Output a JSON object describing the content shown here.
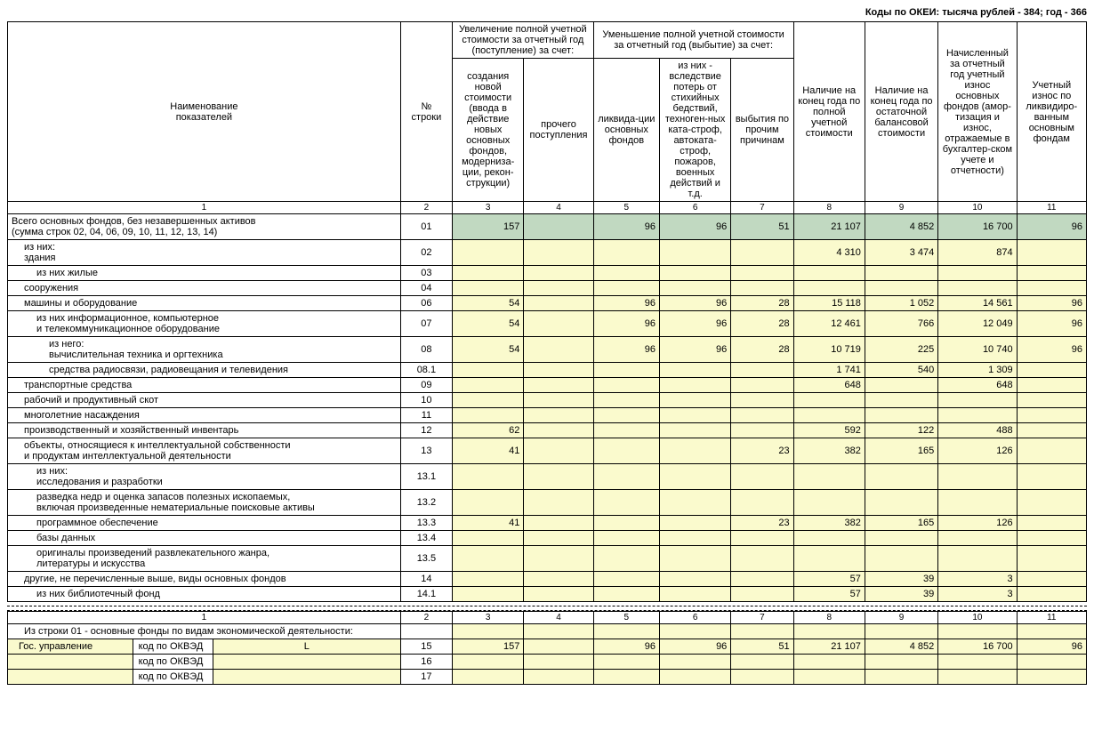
{
  "header_text": "Коды по ОКЕИ: тысяча рублей - 384; год - 366",
  "columns": {
    "name_label": "Наименование\nпоказателей",
    "row_num": "№\nстроки",
    "increase_group": "Увеличение полной учетной стоимости за отчетный год (поступление) за счет:",
    "decrease_group": "Уменьшение полной учетной стоимости за отчетный год (выбытие) за счет:",
    "col3": "создания новой стоимости (ввода в действие новых основных фондов, модерниза-ции, рекон-струкции)",
    "col4": "прочего поступления",
    "col5": "ликвида-ции основных фондов",
    "col6": "из них - вследствие потерь от стихийных бедствий, техноген-ных ката-строф, автоката-строф, пожаров, военных действий и т.д.",
    "col7": "выбытия по прочим причинам",
    "col8": "Наличие на конец года по полной учетной стоимости",
    "col9": "Наличие на конец года по остаточной балансовой стоимости",
    "col10": "Начисленный за отчетный год учетный износ основных фондов (амор-тизация и износ, отражаемые в бухгалтер-ском учете и отчетности)",
    "col11": "Учетный износ по ликвидиро-ванным основным фондам"
  },
  "col_nums": [
    "1",
    "2",
    "3",
    "4",
    "5",
    "6",
    "7",
    "8",
    "9",
    "10",
    "11"
  ],
  "rows": [
    {
      "label": "Всего основных фондов, без незавершенных активов\n(сумма строк 02, 04, 06, 09, 10, 11, 12, 13, 14)",
      "code": "01",
      "indent": 0,
      "green": true,
      "c3": "157",
      "c4": "",
      "c5": "96",
      "c6": "96",
      "c7": "51",
      "c8": "21 107",
      "c9": "4 852",
      "c10": "16 700",
      "c11": "96"
    },
    {
      "label": "из них:\nздания",
      "code": "02",
      "indent": 1,
      "c3": "",
      "c4": "",
      "c5": "",
      "c6": "",
      "c7": "",
      "c8": "4 310",
      "c9": "3 474",
      "c10": "874",
      "c11": ""
    },
    {
      "label": "из них жилые",
      "code": "03",
      "indent": 2,
      "c3": "",
      "c4": "",
      "c5": "",
      "c6": "",
      "c7": "",
      "c8": "",
      "c9": "",
      "c10": "",
      "c11": ""
    },
    {
      "label": "сооружения",
      "code": "04",
      "indent": 1,
      "c3": "",
      "c4": "",
      "c5": "",
      "c6": "",
      "c7": "",
      "c8": "",
      "c9": "",
      "c10": "",
      "c11": ""
    },
    {
      "label": "машины и оборудование",
      "code": "06",
      "indent": 1,
      "c3": "54",
      "c4": "",
      "c5": "96",
      "c6": "96",
      "c7": "28",
      "c8": "15 118",
      "c9": "1 052",
      "c10": "14 561",
      "c11": "96"
    },
    {
      "label": "из них информационное, компьютерное\nи телекоммуникационное оборудование",
      "code": "07",
      "indent": 2,
      "c3": "54",
      "c4": "",
      "c5": "96",
      "c6": "96",
      "c7": "28",
      "c8": "12 461",
      "c9": "766",
      "c10": "12 049",
      "c11": "96"
    },
    {
      "label": "из него:\nвычислительная техника и оргтехника",
      "code": "08",
      "indent": 3,
      "c3": "54",
      "c4": "",
      "c5": "96",
      "c6": "96",
      "c7": "28",
      "c8": "10 719",
      "c9": "225",
      "c10": "10 740",
      "c11": "96"
    },
    {
      "label": "средства радиосвязи, радиовещания и телевидения",
      "code": "08.1",
      "indent": 3,
      "c3": "",
      "c4": "",
      "c5": "",
      "c6": "",
      "c7": "",
      "c8": "1 741",
      "c9": "540",
      "c10": "1 309",
      "c11": ""
    },
    {
      "label": "транспортные средства",
      "code": "09",
      "indent": 1,
      "c3": "",
      "c4": "",
      "c5": "",
      "c6": "",
      "c7": "",
      "c8": "648",
      "c9": "",
      "c10": "648",
      "c11": ""
    },
    {
      "label": "рабочий и продуктивный скот",
      "code": "10",
      "indent": 1,
      "c3": "",
      "c4": "",
      "c5": "",
      "c6": "",
      "c7": "",
      "c8": "",
      "c9": "",
      "c10": "",
      "c11": ""
    },
    {
      "label": "многолетние насаждения",
      "code": "11",
      "indent": 1,
      "c3": "",
      "c4": "",
      "c5": "",
      "c6": "",
      "c7": "",
      "c8": "",
      "c9": "",
      "c10": "",
      "c11": ""
    },
    {
      "label": "производственный и хозяйственный инвентарь",
      "code": "12",
      "indent": 1,
      "c3": "62",
      "c4": "",
      "c5": "",
      "c6": "",
      "c7": "",
      "c8": "592",
      "c9": "122",
      "c10": "488",
      "c11": ""
    },
    {
      "label": "объекты, относящиеся к интеллектуальной собственности\nи продуктам интеллектуальной деятельности",
      "code": "13",
      "indent": 1,
      "c3": "41",
      "c4": "",
      "c5": "",
      "c6": "",
      "c7": "23",
      "c8": "382",
      "c9": "165",
      "c10": "126",
      "c11": ""
    },
    {
      "label": "из них:\nисследования и разработки",
      "code": "13.1",
      "indent": 2,
      "c3": "",
      "c4": "",
      "c5": "",
      "c6": "",
      "c7": "",
      "c8": "",
      "c9": "",
      "c10": "",
      "c11": ""
    },
    {
      "label": "разведка недр и оценка запасов полезных ископаемых,\nвключая произведенные нематериальные поисковые активы",
      "code": "13.2",
      "indent": 2,
      "c3": "",
      "c4": "",
      "c5": "",
      "c6": "",
      "c7": "",
      "c8": "",
      "c9": "",
      "c10": "",
      "c11": ""
    },
    {
      "label": "программное обеспечение",
      "code": "13.3",
      "indent": 2,
      "c3": "41",
      "c4": "",
      "c5": "",
      "c6": "",
      "c7": "23",
      "c8": "382",
      "c9": "165",
      "c10": "126",
      "c11": ""
    },
    {
      "label": "базы данных",
      "code": "13.4",
      "indent": 2,
      "c3": "",
      "c4": "",
      "c5": "",
      "c6": "",
      "c7": "",
      "c8": "",
      "c9": "",
      "c10": "",
      "c11": ""
    },
    {
      "label": "оригиналы произведений развлекательного жанра,\nлитературы и искусства",
      "code": "13.5",
      "indent": 2,
      "c3": "",
      "c4": "",
      "c5": "",
      "c6": "",
      "c7": "",
      "c8": "",
      "c9": "",
      "c10": "",
      "c11": ""
    },
    {
      "label": "другие, не перечисленные выше, виды основных фондов",
      "code": "14",
      "indent": 1,
      "c3": "",
      "c4": "",
      "c5": "",
      "c6": "",
      "c7": "",
      "c8": "57",
      "c9": "39",
      "c10": "3",
      "c11": ""
    },
    {
      "label": "из них библиотечный фонд",
      "code": "14.1",
      "indent": 2,
      "c3": "",
      "c4": "",
      "c5": "",
      "c6": "",
      "c7": "",
      "c8": "57",
      "c9": "39",
      "c10": "3",
      "c11": ""
    }
  ],
  "section2": {
    "title": "Из строки 01 - основные фонды по видам экономической деятельности:",
    "okved_label": "код по ОКВЭД",
    "gos_label": "Гос. управление",
    "rows": [
      {
        "name": "Гос. управление",
        "okved_text": "L",
        "code": "15",
        "c3": "157",
        "c4": "",
        "c5": "96",
        "c6": "96",
        "c7": "51",
        "c8": "21 107",
        "c9": "4 852",
        "c10": "16 700",
        "c11": "96"
      },
      {
        "name": "",
        "okved_text": "",
        "code": "16",
        "c3": "",
        "c4": "",
        "c5": "",
        "c6": "",
        "c7": "",
        "c8": "",
        "c9": "",
        "c10": "",
        "c11": ""
      },
      {
        "name": "",
        "okved_text": "",
        "code": "17",
        "c3": "",
        "c4": "",
        "c5": "",
        "c6": "",
        "c7": "",
        "c8": "",
        "c9": "",
        "c10": "",
        "c11": ""
      }
    ]
  }
}
